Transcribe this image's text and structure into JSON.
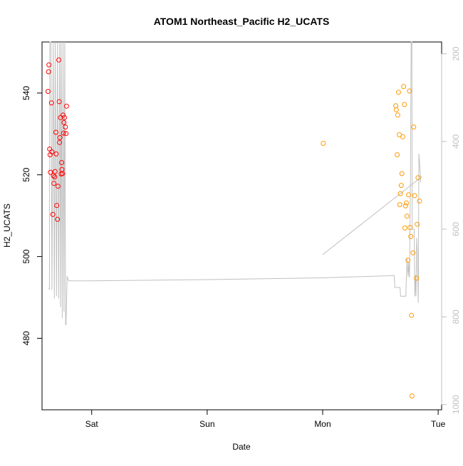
{
  "chart_data": {
    "type": "scatter",
    "title": "ATOM1 Northeast_Pacific H2_UCATS",
    "xlabel": "Date",
    "ylabel": "H2_UCATS",
    "x_ticks": [
      {
        "label": "Sat",
        "value": 0.0
      },
      {
        "label": "Sun",
        "value": 1.0
      },
      {
        "label": "Mon",
        "value": 2.0
      },
      {
        "label": "Tue",
        "value": 3.0
      }
    ],
    "xlim": [
      -0.43,
      3.03
    ],
    "ylim": [
      462.5,
      552.5
    ],
    "y_ticks": [
      480,
      500,
      520,
      540
    ],
    "y2_ticks": [
      200,
      400,
      600,
      800,
      1000
    ],
    "y2lim": [
      1012,
      173
    ],
    "colors": {
      "series1": "#ff0000",
      "series2": "#ff9900",
      "secondary_line": "#c0c0c0",
      "axis": "#000000",
      "secondary_axis": "#c0c0c0"
    },
    "series": [
      {
        "color": "#ff0000",
        "points": [
          [
            -0.378,
            540.4
          ],
          [
            -0.373,
            545.2
          ],
          [
            -0.37,
            546.9
          ],
          [
            -0.364,
            526.3
          ],
          [
            -0.36,
            524.9
          ],
          [
            -0.357,
            520.6
          ],
          [
            -0.348,
            537.6
          ],
          [
            -0.344,
            525.6
          ],
          [
            -0.336,
            510.3
          ],
          [
            -0.332,
            519.8
          ],
          [
            -0.327,
            517.9
          ],
          [
            -0.321,
            519.5
          ],
          [
            -0.317,
            520.8
          ],
          [
            -0.31,
            530.4
          ],
          [
            -0.307,
            525.1
          ],
          [
            -0.303,
            512.5
          ],
          [
            -0.297,
            509.1
          ],
          [
            -0.292,
            517.2
          ],
          [
            -0.285,
            548.1
          ],
          [
            -0.281,
            537.9
          ],
          [
            -0.278,
            527.9
          ],
          [
            -0.275,
            529.1
          ],
          [
            -0.27,
            534.0
          ],
          [
            -0.264,
            520.2
          ],
          [
            -0.26,
            523.0
          ],
          [
            -0.257,
            521.3
          ],
          [
            -0.253,
            520.3
          ],
          [
            -0.248,
            534.6
          ],
          [
            -0.244,
            530.2
          ],
          [
            -0.24,
            532.8
          ],
          [
            -0.236,
            534.0
          ],
          [
            -0.228,
            531.7
          ],
          [
            -0.222,
            530.1
          ],
          [
            -0.218,
            536.8
          ]
        ]
      },
      {
        "color": "#ff9900",
        "points": [
          [
            2.005,
            527.7
          ],
          [
            2.633,
            536.9
          ],
          [
            2.638,
            535.9
          ],
          [
            2.645,
            524.9
          ],
          [
            2.65,
            534.6
          ],
          [
            2.657,
            540.2
          ],
          [
            2.663,
            529.8
          ],
          [
            2.668,
            512.7
          ],
          [
            2.673,
            515.4
          ],
          [
            2.68,
            517.4
          ],
          [
            2.686,
            520.3
          ],
          [
            2.694,
            529.3
          ],
          [
            2.701,
            541.6
          ],
          [
            2.708,
            537.2
          ],
          [
            2.712,
            507.0
          ],
          [
            2.718,
            512.4
          ],
          [
            2.725,
            513.1
          ],
          [
            2.73,
            509.9
          ],
          [
            2.738,
            499.1
          ],
          [
            2.744,
            515.1
          ],
          [
            2.752,
            540.5
          ],
          [
            2.757,
            507.1
          ],
          [
            2.763,
            504.9
          ],
          [
            2.769,
            485.6
          ],
          [
            2.773,
            465.9
          ],
          [
            2.782,
            500.9
          ],
          [
            2.788,
            531.7
          ],
          [
            2.796,
            514.9
          ],
          [
            2.812,
            494.7
          ],
          [
            2.818,
            507.9
          ],
          [
            2.826,
            519.3
          ],
          [
            2.838,
            513.6
          ]
        ]
      }
    ],
    "secondary_line": {
      "points": [
        [
          -0.37,
          734
        ],
        [
          -0.366,
          738
        ],
        [
          -0.362,
          173
        ],
        [
          -0.352,
          173
        ],
        [
          -0.344,
          738
        ],
        [
          -0.333,
          173
        ],
        [
          -0.323,
          758
        ],
        [
          -0.316,
          173
        ],
        [
          -0.305,
          753
        ],
        [
          -0.296,
          173
        ],
        [
          -0.286,
          758
        ],
        [
          -0.277,
          173
        ],
        [
          -0.27,
          778
        ],
        [
          -0.264,
          173
        ],
        [
          -0.255,
          803
        ],
        [
          -0.248,
          173
        ],
        [
          -0.24,
          788
        ],
        [
          -0.233,
          173
        ],
        [
          -0.226,
          818
        ],
        [
          -0.222,
          818
        ],
        [
          -0.212,
          707
        ],
        [
          -0.2,
          718
        ],
        [
          0.0,
          718
        ],
        [
          1.0,
          715
        ],
        [
          2.0,
          711
        ],
        [
          2.62,
          706
        ],
        [
          2.625,
          733
        ],
        [
          2.67,
          733
        ],
        [
          2.675,
          753
        ],
        [
          2.72,
          753
        ],
        [
          2.73,
          666
        ],
        [
          2.734,
          688
        ],
        [
          2.74,
          708
        ],
        [
          2.745,
          675
        ],
        [
          2.752,
          710
        ],
        [
          2.76,
          495
        ],
        [
          2.763,
          330
        ],
        [
          2.766,
          173
        ],
        [
          2.772,
          173
        ],
        [
          2.775,
          600
        ],
        [
          2.792,
          600
        ],
        [
          2.798,
          753
        ],
        [
          2.805,
          705
        ],
        [
          2.808,
          753
        ],
        [
          2.814,
          620
        ],
        [
          2.82,
          658
        ],
        [
          2.828,
          768
        ],
        [
          2.833,
          428
        ],
        [
          2.842,
          458
        ],
        [
          2.848,
          493
        ]
      ],
      "segment": [
        [
          2.0,
          658
        ],
        [
          2.86,
          480
        ]
      ]
    }
  }
}
